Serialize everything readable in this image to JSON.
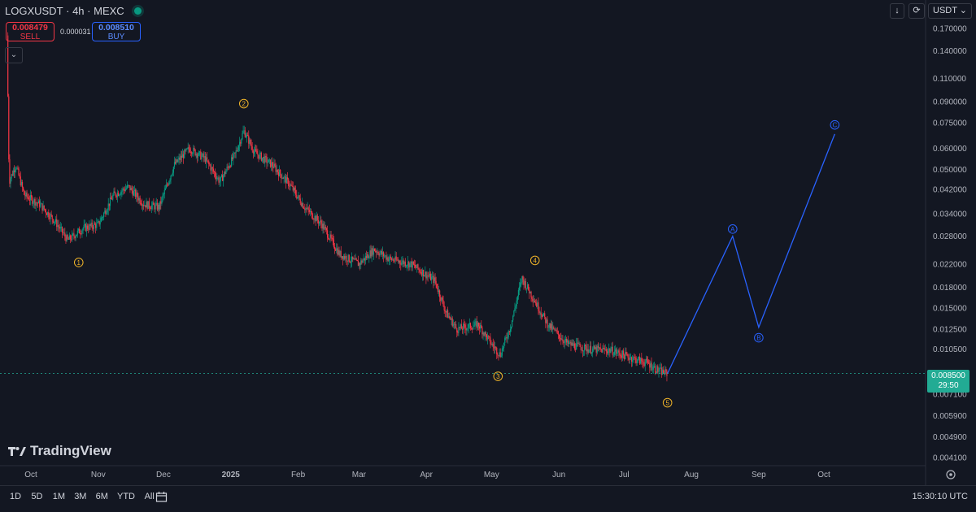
{
  "header": {
    "symbol": "LOGXUSDT",
    "interval": "4h",
    "exchange": "MEXC",
    "sell_price": "0.008479",
    "sell_label": "SELL",
    "spread": "0.000031",
    "buy_price": "0.008510",
    "buy_label": "BUY"
  },
  "toolbar": {
    "currency": "USDT"
  },
  "current_price": {
    "value": "0.008500",
    "countdown": "29:50"
  },
  "bottom_bar": {
    "ranges": [
      "1D",
      "5D",
      "1M",
      "3M",
      "6M",
      "YTD",
      "All"
    ],
    "time": "15:30:10 UTC"
  },
  "watermark": "TradingView",
  "colors": {
    "background": "#131722",
    "up": "#089981",
    "down": "#f23645",
    "projection": "#2962ff",
    "wave_label": "#f0b429",
    "current_price": "#22ab94"
  },
  "chart_data": {
    "type": "candlestick",
    "x_axis_ticks": [
      "Oct",
      "Nov",
      "Dec",
      "2025",
      "Feb",
      "Mar",
      "Apr",
      "May",
      "Jun",
      "Jul",
      "Aug",
      "Sep",
      "Oct"
    ],
    "y_axis_ticks": [
      "0.170000",
      "0.140000",
      "0.110000",
      "0.090000",
      "0.075000",
      "0.060000",
      "0.050000",
      "0.042000",
      "0.034000",
      "0.028000",
      "0.022000",
      "0.018000",
      "0.015000",
      "0.012500",
      "0.010500",
      "0.007100",
      "0.005900",
      "0.004900",
      "0.004100"
    ],
    "scale": "log",
    "price_path": [
      [
        "2024-09-20",
        0.16
      ],
      [
        "2024-09-21",
        0.045
      ],
      [
        "2024-09-24",
        0.052
      ],
      [
        "2024-09-28",
        0.04
      ],
      [
        "2024-10-05",
        0.037
      ],
      [
        "2024-10-12",
        0.032
      ],
      [
        "2024-10-18",
        0.027
      ],
      [
        "2024-10-25",
        0.03
      ],
      [
        "2024-11-01",
        0.031
      ],
      [
        "2024-11-08",
        0.04
      ],
      [
        "2024-11-15",
        0.043
      ],
      [
        "2024-11-22",
        0.037
      ],
      [
        "2024-11-29",
        0.036
      ],
      [
        "2024-12-06",
        0.052
      ],
      [
        "2024-12-13",
        0.06
      ],
      [
        "2024-12-20",
        0.055
      ],
      [
        "2024-12-27",
        0.045
      ],
      [
        "2025-01-03",
        0.057
      ],
      [
        "2025-01-07",
        0.07
      ],
      [
        "2025-01-12",
        0.058
      ],
      [
        "2025-01-20",
        0.052
      ],
      [
        "2025-01-28",
        0.044
      ],
      [
        "2025-02-04",
        0.036
      ],
      [
        "2025-02-12",
        0.031
      ],
      [
        "2025-02-20",
        0.024
      ],
      [
        "2025-03-01",
        0.022
      ],
      [
        "2025-03-08",
        0.025
      ],
      [
        "2025-03-15",
        0.023
      ],
      [
        "2025-03-25",
        0.022
      ],
      [
        "2025-04-05",
        0.019
      ],
      [
        "2025-04-10",
        0.0145
      ],
      [
        "2025-04-15",
        0.0125
      ],
      [
        "2025-04-25",
        0.013
      ],
      [
        "2025-05-01",
        0.011
      ],
      [
        "2025-05-05",
        0.01
      ],
      [
        "2025-05-10",
        0.013
      ],
      [
        "2025-05-15",
        0.0195
      ],
      [
        "2025-05-20",
        0.0165
      ],
      [
        "2025-05-27",
        0.013
      ],
      [
        "2025-06-05",
        0.011
      ],
      [
        "2025-06-15",
        0.0105
      ],
      [
        "2025-06-25",
        0.0104
      ],
      [
        "2025-07-05",
        0.0097
      ],
      [
        "2025-07-12",
        0.0093
      ],
      [
        "2025-07-17",
        0.0087
      ],
      [
        "2025-07-21",
        0.0085
      ]
    ],
    "current_price": 0.0085,
    "elliott_wave_labels": [
      {
        "label": "①",
        "date": "2024-10-23",
        "price": 0.0223
      },
      {
        "label": "②",
        "date": "2025-01-07",
        "price": 0.0885
      },
      {
        "label": "③",
        "date": "2025-05-04",
        "price": 0.0083
      },
      {
        "label": "④",
        "date": "2025-05-21",
        "price": 0.0227
      },
      {
        "label": "⑤",
        "date": "2025-07-21",
        "price": 0.0066
      }
    ],
    "projection": {
      "points": [
        [
          "2025-07-21",
          0.0085
        ],
        [
          "2025-08-20",
          0.028
        ],
        [
          "2025-09-01",
          0.0127
        ],
        [
          "2025-10-06",
          0.068
        ]
      ],
      "labels": [
        {
          "label": "Ⓐ",
          "date": "2025-08-20",
          "price": 0.0298
        },
        {
          "label": "Ⓑ",
          "date": "2025-09-01",
          "price": 0.0116
        },
        {
          "label": "Ⓒ",
          "date": "2025-10-06",
          "price": 0.0736
        }
      ]
    }
  }
}
